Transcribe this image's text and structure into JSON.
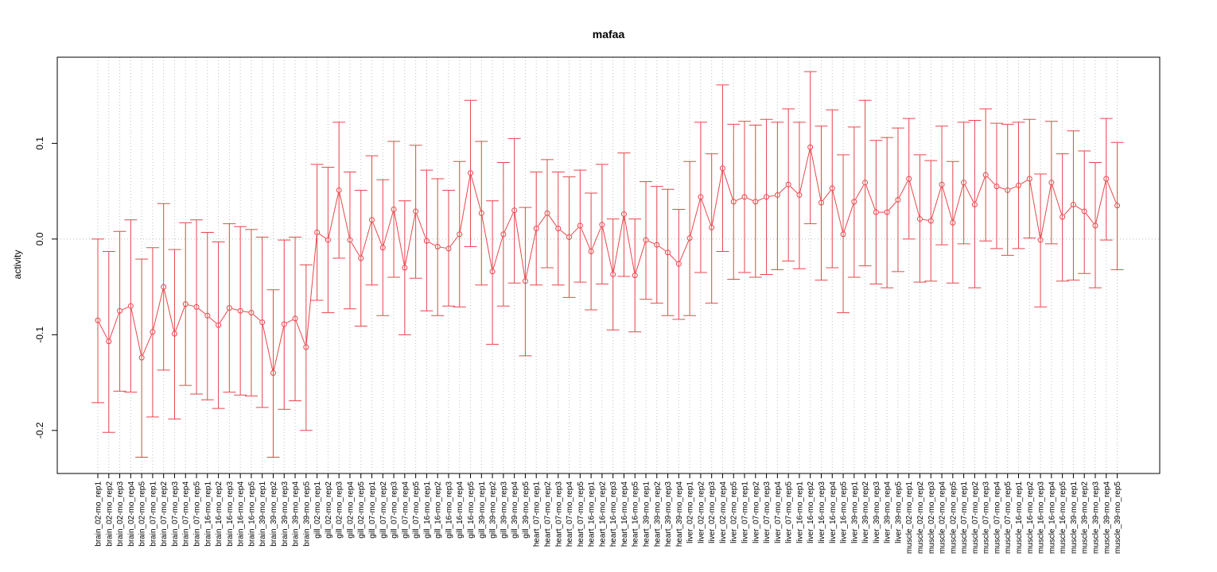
{
  "chart_data": {
    "type": "line",
    "title": "mafaa",
    "xlabel": "",
    "ylabel": "activity",
    "ylim": [
      -0.245,
      0.19
    ],
    "yticks": [
      -0.2,
      -0.1,
      0.0,
      0.1
    ],
    "ytick_labels": [
      "-0.2",
      "-0.1",
      "0.0",
      "0.1"
    ],
    "grid": true,
    "colors": {
      "series": "#e8474c",
      "grid": "#bfbfbf",
      "axis": "#000000"
    },
    "categories": [
      "brain_02-mo_rep1",
      "brain_02-mo_rep2",
      "brain_02-mo_rep3",
      "brain_02-mo_rep4",
      "brain_02-mo_rep5",
      "brain_07-mo_rep1",
      "brain_07-mo_rep2",
      "brain_07-mo_rep3",
      "brain_07-mo_rep4",
      "brain_07-mo_rep5",
      "brain_16-mo_rep1",
      "brain_16-mo_rep2",
      "brain_16-mo_rep3",
      "brain_16-mo_rep4",
      "brain_16-mo_rep5",
      "brain_39-mo_rep1",
      "brain_39-mo_rep2",
      "brain_39-mo_rep3",
      "brain_39-mo_rep4",
      "brain_39-mo_rep5",
      "gill_02-mo_rep1",
      "gill_02-mo_rep2",
      "gill_02-mo_rep3",
      "gill_02-mo_rep4",
      "gill_02-mo_rep5",
      "gill_07-mo_rep1",
      "gill_07-mo_rep2",
      "gill_07-mo_rep3",
      "gill_07-mo_rep4",
      "gill_07-mo_rep5",
      "gill_16-mo_rep1",
      "gill_16-mo_rep2",
      "gill_16-mo_rep3",
      "gill_16-mo_rep4",
      "gill_16-mo_rep5",
      "gill_39-mo_rep1",
      "gill_39-mo_rep2",
      "gill_39-mo_rep3",
      "gill_39-mo_rep4",
      "gill_39-mo_rep5",
      "heart_07-mo_rep1",
      "heart_07-mo_rep2",
      "heart_07-mo_rep3",
      "heart_07-mo_rep4",
      "heart_07-mo_rep5",
      "heart_16-mo_rep1",
      "heart_16-mo_rep2",
      "heart_16-mo_rep3",
      "heart_16-mo_rep4",
      "heart_16-mo_rep5",
      "heart_39-mo_rep1",
      "heart_39-mo_rep2",
      "heart_39-mo_rep3",
      "heart_39-mo_rep4",
      "liver_02-mo_rep1",
      "liver_02-mo_rep2",
      "liver_02-mo_rep3",
      "liver_02-mo_rep4",
      "liver_02-mo_rep5",
      "liver_07-mo_rep1",
      "liver_07-mo_rep2",
      "liver_07-mo_rep3",
      "liver_07-mo_rep4",
      "liver_07-mo_rep5",
      "liver_16-mo_rep1",
      "liver_16-mo_rep2",
      "liver_16-mo_rep3",
      "liver_16-mo_rep4",
      "liver_16-mo_rep5",
      "liver_39-mo_rep1",
      "liver_39-mo_rep2",
      "liver_39-mo_rep3",
      "liver_39-mo_rep4",
      "liver_39-mo_rep5",
      "muscle_02-mo_rep1",
      "muscle_02-mo_rep2",
      "muscle_02-mo_rep3",
      "muscle_02-mo_rep4",
      "muscle_02-mo_rep5",
      "muscle_07-mo_rep1",
      "muscle_07-mo_rep2",
      "muscle_07-mo_rep3",
      "muscle_07-mo_rep4",
      "muscle_07-mo_rep5",
      "muscle_16-mo_rep1",
      "muscle_16-mo_rep2",
      "muscle_16-mo_rep3",
      "muscle_16-mo_rep4",
      "muscle_16-mo_rep5",
      "muscle_39-mo_rep1",
      "muscle_39-mo_rep2",
      "muscle_39-mo_rep3",
      "muscle_39-mo_rep4",
      "muscle_39-mo_rep5"
    ],
    "values": [
      -0.085,
      -0.107,
      -0.075,
      -0.07,
      -0.124,
      -0.097,
      -0.05,
      -0.099,
      -0.068,
      -0.071,
      -0.08,
      -0.09,
      -0.072,
      -0.075,
      -0.077,
      -0.087,
      -0.14,
      -0.089,
      -0.083,
      -0.113,
      0.007,
      -0.001,
      0.051,
      -0.001,
      -0.02,
      0.02,
      -0.009,
      0.031,
      -0.03,
      0.029,
      -0.002,
      -0.008,
      -0.01,
      0.005,
      0.069,
      0.027,
      -0.034,
      0.005,
      0.03,
      -0.044,
      0.011,
      0.027,
      0.011,
      0.002,
      0.014,
      -0.013,
      0.015,
      -0.037,
      0.026,
      -0.038,
      -0.001,
      -0.006,
      -0.014,
      -0.026,
      0.001,
      0.044,
      0.012,
      0.074,
      0.039,
      0.044,
      0.039,
      0.044,
      0.046,
      0.057,
      0.046,
      0.096,
      0.038,
      0.053,
      0.005,
      0.039,
      0.059,
      0.028,
      0.028,
      0.041,
      0.063,
      0.021,
      0.019,
      0.057,
      0.017,
      0.059,
      0.036,
      0.067,
      0.055,
      0.051,
      0.056,
      0.063,
      -0.001,
      0.059,
      0.023,
      0.036,
      0.029,
      0.014,
      0.063,
      0.035
    ],
    "err_low": [
      -0.171,
      -0.202,
      -0.159,
      -0.16,
      -0.228,
      -0.186,
      -0.137,
      -0.188,
      -0.153,
      -0.162,
      -0.168,
      -0.177,
      -0.16,
      -0.163,
      -0.164,
      -0.176,
      -0.228,
      -0.178,
      -0.169,
      -0.2,
      -0.064,
      -0.077,
      -0.02,
      -0.073,
      -0.091,
      -0.048,
      -0.08,
      -0.04,
      -0.1,
      -0.041,
      -0.075,
      -0.08,
      -0.07,
      -0.071,
      -0.008,
      -0.048,
      -0.11,
      -0.07,
      -0.046,
      -0.122,
      -0.048,
      -0.03,
      -0.048,
      -0.061,
      -0.045,
      -0.074,
      -0.047,
      -0.095,
      -0.039,
      -0.097,
      -0.063,
      -0.067,
      -0.08,
      -0.084,
      -0.08,
      -0.035,
      -0.067,
      -0.013,
      -0.042,
      -0.035,
      -0.04,
      -0.037,
      -0.032,
      -0.023,
      -0.031,
      0.016,
      -0.043,
      -0.03,
      -0.077,
      -0.04,
      -0.028,
      -0.047,
      -0.051,
      -0.034,
      0.0,
      -0.045,
      -0.044,
      -0.006,
      -0.046,
      -0.005,
      -0.051,
      -0.002,
      -0.01,
      -0.017,
      -0.01,
      0.001,
      -0.071,
      -0.005,
      -0.044,
      -0.043,
      -0.036,
      -0.051,
      -0.001,
      -0.032
    ],
    "err_high": [
      0.0,
      -0.013,
      0.008,
      0.02,
      -0.021,
      -0.009,
      0.037,
      -0.011,
      0.017,
      0.02,
      0.007,
      -0.003,
      0.016,
      0.013,
      0.01,
      0.002,
      -0.053,
      -0.001,
      0.002,
      -0.027,
      0.078,
      0.075,
      0.122,
      0.07,
      0.051,
      0.087,
      0.062,
      0.102,
      0.04,
      0.098,
      0.072,
      0.063,
      0.051,
      0.081,
      0.145,
      0.102,
      0.04,
      0.08,
      0.105,
      0.033,
      0.07,
      0.083,
      0.07,
      0.065,
      0.072,
      0.048,
      0.078,
      0.021,
      0.09,
      0.021,
      0.06,
      0.055,
      0.052,
      0.031,
      0.081,
      0.122,
      0.089,
      0.161,
      0.12,
      0.123,
      0.119,
      0.125,
      0.122,
      0.136,
      0.122,
      0.175,
      0.118,
      0.135,
      0.088,
      0.117,
      0.145,
      0.103,
      0.106,
      0.116,
      0.126,
      0.088,
      0.082,
      0.118,
      0.081,
      0.122,
      0.124,
      0.136,
      0.121,
      0.12,
      0.122,
      0.125,
      0.068,
      0.123,
      0.089,
      0.113,
      0.092,
      0.08,
      0.126,
      0.101
    ]
  }
}
